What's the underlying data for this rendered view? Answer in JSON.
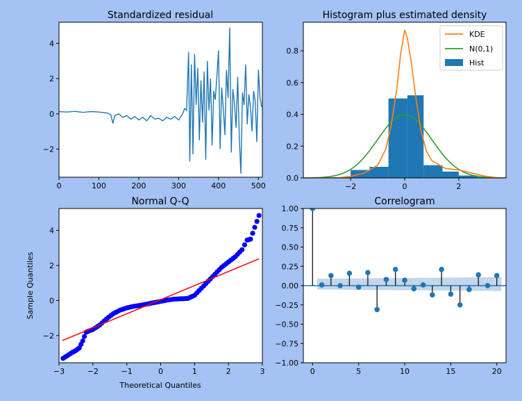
{
  "colors": {
    "figure_bg": "#a4c2f4",
    "axes_bg": "#ffffff",
    "blue": "#1f77b4",
    "orange": "#ff7f0e",
    "green": "#2ca02c",
    "qq_points": "#0000ff",
    "qq_line": "#ff0000",
    "conf_band": "#bcd2e8"
  },
  "chart_data": [
    {
      "type": "line",
      "title": "Standardized residual",
      "xlim": [
        0,
        510
      ],
      "ylim": [
        -3.6,
        5.2
      ],
      "xticks": [
        0,
        100,
        200,
        300,
        400,
        500
      ],
      "yticks": [
        -2,
        0,
        2,
        4
      ],
      "grid": false,
      "series": [
        {
          "x": [
            0,
            20,
            40,
            60,
            80,
            100,
            120,
            130,
            135,
            140,
            150,
            160,
            170,
            180,
            190,
            200,
            210,
            220,
            230,
            240,
            250,
            260,
            270,
            280,
            290,
            300,
            310,
            315,
            320,
            325,
            328,
            332,
            336,
            340,
            344,
            348,
            352,
            356,
            360,
            364,
            368,
            372,
            376,
            380,
            384,
            388,
            392,
            396,
            400,
            404,
            408,
            412,
            416,
            420,
            424,
            428,
            432,
            436,
            440,
            444,
            448,
            452,
            456,
            460,
            464,
            468,
            472,
            476,
            480,
            484,
            488,
            492,
            496,
            500,
            504,
            508
          ],
          "values": [
            0.12,
            0.1,
            0.14,
            0.08,
            0.13,
            0.1,
            0.05,
            -0.05,
            -0.55,
            -0.1,
            0.0,
            -0.2,
            -0.1,
            -0.3,
            -0.15,
            -0.35,
            -0.2,
            -0.4,
            -0.1,
            -0.3,
            -0.25,
            -0.4,
            -0.2,
            -0.3,
            -0.15,
            -0.35,
            0.0,
            0.3,
            0.2,
            3.5,
            -2.7,
            2.8,
            -2.3,
            3.4,
            0.5,
            2.6,
            -1.5,
            1.9,
            -0.5,
            2.4,
            -2.6,
            3.0,
            0.2,
            2.0,
            -1.8,
            1.3,
            0.8,
            2.2,
            3.6,
            -2.0,
            1.5,
            0.3,
            -1.2,
            2.5,
            0.9,
            4.9,
            -2.2,
            1.4,
            0.6,
            -0.8,
            2.1,
            -1.3,
            -3.4,
            1.2,
            0.5,
            2.8,
            -0.6,
            1.1,
            0.4,
            -1.0,
            1.3,
            0.7,
            -1.6,
            2.5,
            0.9,
            0.4
          ]
        }
      ]
    },
    {
      "type": "bar",
      "title": "Histogram plus estimated density",
      "xlim": [
        -3.75,
        3.75
      ],
      "ylim": [
        0,
        0.98
      ],
      "xticks": [
        -2,
        0,
        2
      ],
      "yticks": [
        0.0,
        0.2,
        0.4,
        0.6,
        0.8
      ],
      "grid": false,
      "legend": "top-right",
      "series": [
        {
          "name": "KDE",
          "type": "line",
          "x": [
            -3.75,
            -2.5,
            -2.0,
            -1.5,
            -1.0,
            -0.7,
            -0.5,
            -0.3,
            -0.15,
            0.0,
            0.1,
            0.25,
            0.4,
            0.6,
            0.8,
            1.0,
            1.5,
            2.0,
            2.5,
            3.0,
            3.5,
            3.75
          ],
          "values": [
            0.0,
            0.0,
            0.01,
            0.03,
            0.08,
            0.18,
            0.33,
            0.55,
            0.78,
            0.93,
            0.88,
            0.72,
            0.52,
            0.3,
            0.17,
            0.11,
            0.06,
            0.05,
            0.03,
            0.01,
            0.0,
            0.0
          ]
        },
        {
          "name": "N(0,1)",
          "type": "line",
          "x": "normal-pdf",
          "values": "normal-pdf"
        },
        {
          "name": "Hist",
          "type": "bar",
          "bin_edges": [
            -3.4,
            -2.7,
            -2.0,
            -1.3,
            -0.6,
            0.1,
            0.7,
            1.4,
            2.0,
            2.7,
            3.4
          ],
          "values": [
            0.003,
            0.005,
            0.05,
            0.07,
            0.5,
            0.52,
            0.08,
            0.04,
            0.015,
            0.004
          ]
        }
      ]
    },
    {
      "type": "scatter",
      "title": "Normal Q-Q",
      "xlabel": "Theoretical Quantiles",
      "ylabel": "Sample Quantiles",
      "xlim": [
        -3.0,
        3.0
      ],
      "ylim": [
        -3.55,
        5.25
      ],
      "xticks": [
        -3,
        -2,
        -1,
        0,
        1,
        2,
        3
      ],
      "yticks": [
        -2,
        0,
        2,
        4
      ],
      "grid": false,
      "series": [
        {
          "name": "",
          "type": "scatter",
          "quantile_points": [
            [
              -2.88,
              -3.3
            ],
            [
              -2.6,
              -2.95
            ],
            [
              -2.5,
              -2.85
            ],
            [
              -2.4,
              -2.7
            ],
            [
              -2.3,
              -2.3
            ],
            [
              -2.2,
              -1.8
            ],
            [
              -2.0,
              -1.65
            ],
            [
              -1.8,
              -1.4
            ],
            [
              -1.6,
              -1.05
            ],
            [
              -1.4,
              -0.75
            ],
            [
              -1.2,
              -0.55
            ],
            [
              -1.0,
              -0.42
            ],
            [
              -0.8,
              -0.33
            ],
            [
              -0.6,
              -0.27
            ],
            [
              -0.4,
              -0.2
            ],
            [
              -0.2,
              -0.12
            ],
            [
              0.0,
              -0.05
            ],
            [
              0.2,
              0.03
            ],
            [
              0.4,
              0.08
            ],
            [
              0.6,
              0.1
            ],
            [
              0.8,
              0.12
            ],
            [
              1.0,
              0.3
            ],
            [
              1.2,
              0.7
            ],
            [
              1.4,
              1.1
            ],
            [
              1.6,
              1.5
            ],
            [
              1.8,
              1.9
            ],
            [
              2.0,
              2.2
            ],
            [
              2.2,
              2.5
            ],
            [
              2.4,
              2.9
            ],
            [
              2.55,
              3.45
            ],
            [
              2.65,
              3.5
            ],
            [
              2.9,
              4.85
            ]
          ]
        },
        {
          "name": "",
          "type": "line",
          "x": [
            -2.9,
            2.9
          ],
          "values": [
            -2.28,
            2.38
          ]
        }
      ]
    },
    {
      "type": "bar",
      "title": "Correlogram",
      "xlim": [
        -1,
        21
      ],
      "ylim": [
        -1.0,
        1.0
      ],
      "xticks": [
        0,
        5,
        10,
        15,
        20
      ],
      "yticks": [
        "1.00",
        "0.75",
        "0.50",
        "0.25",
        "0.00",
        "−0.25",
        "−0.50",
        "−0.75",
        "−1.00"
      ],
      "grid": false,
      "categories": [
        0,
        1,
        2,
        3,
        4,
        5,
        6,
        7,
        8,
        9,
        10,
        11,
        12,
        13,
        14,
        15,
        16,
        17,
        18,
        19,
        20
      ],
      "values": [
        1.0,
        0.01,
        0.13,
        0.0,
        0.16,
        -0.02,
        0.17,
        -0.31,
        0.08,
        0.21,
        0.07,
        -0.04,
        0.01,
        -0.12,
        0.21,
        -0.11,
        -0.25,
        -0.05,
        0.14,
        0.0,
        0.13
      ],
      "confidence_band": [
        -0.05,
        0.09
      ]
    }
  ]
}
